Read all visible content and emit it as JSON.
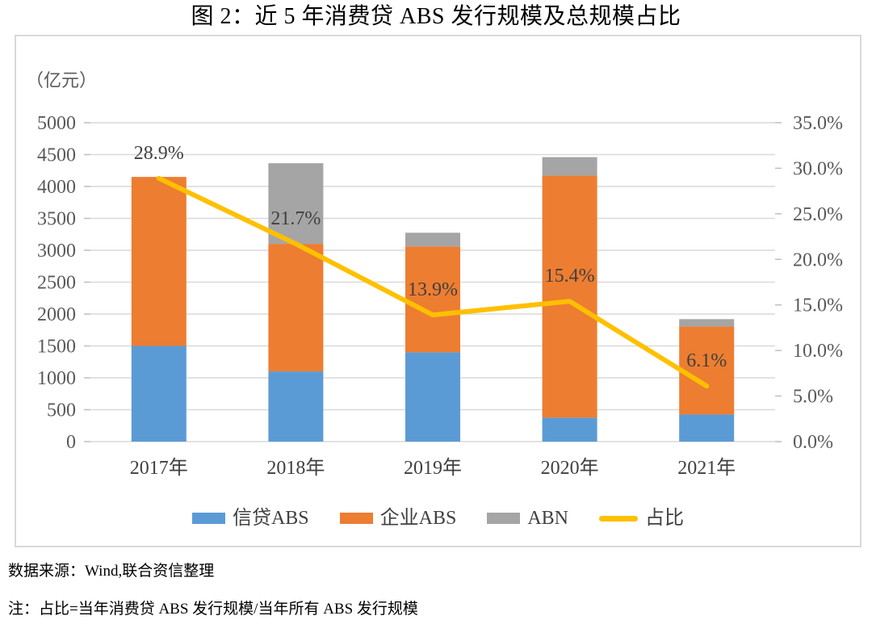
{
  "title": "图 2：近 5 年消费贷 ABS 发行规模及总规模占比",
  "notes": {
    "source": "数据来源：Wind,联合资信整理",
    "note": "注：占比=当年消费贷 ABS 发行规模/当年所有 ABS 发行规模"
  },
  "colors": {
    "credit_abs": "#5B9BD5",
    "corporate_abs": "#ED7D31",
    "abn": "#A5A5A5",
    "ratio_line": "#FFC000",
    "gridline": "#D9D9D9",
    "tick": "#BFBFBF",
    "axis_text": "#595959",
    "label_text": "#404040",
    "chart_border": "#D9D9D9"
  },
  "chart_data": {
    "type": "bar",
    "subtype": "stacked-column-with-line-overlay",
    "categories": [
      "2017年",
      "2018年",
      "2019年",
      "2020年",
      "2021年"
    ],
    "series": [
      {
        "name": "信贷ABS",
        "kind": "bar",
        "color": "#5B9BD5",
        "values": [
          1500,
          1100,
          1400,
          375,
          425
        ]
      },
      {
        "name": "企业ABS",
        "kind": "bar",
        "color": "#ED7D31",
        "values": [
          2650,
          2000,
          1660,
          3795,
          1380
        ]
      },
      {
        "name": "ABN",
        "kind": "bar",
        "color": "#A5A5A5",
        "values": [
          0,
          1265,
          215,
          290,
          115
        ]
      },
      {
        "name": "占比",
        "kind": "line",
        "axis": "right",
        "color": "#FFC000",
        "values": [
          28.9,
          21.7,
          13.9,
          15.4,
          6.1
        ],
        "labels": [
          "28.9%",
          "21.7%",
          "13.9%",
          "15.4%",
          "6.1%"
        ]
      }
    ],
    "left_axis": {
      "unit": "（亿元）",
      "min": 0,
      "max": 5000,
      "step": 500,
      "tick_labels": [
        "0",
        "500",
        "1000",
        "1500",
        "2000",
        "2500",
        "3000",
        "3500",
        "4000",
        "4500",
        "5000"
      ]
    },
    "right_axis": {
      "min": 0,
      "max": 35,
      "step": 5,
      "tick_labels": [
        "0.0%",
        "5.0%",
        "10.0%",
        "15.0%",
        "20.0%",
        "25.0%",
        "30.0%",
        "35.0%"
      ]
    },
    "grid": true,
    "legend_position": "bottom"
  }
}
